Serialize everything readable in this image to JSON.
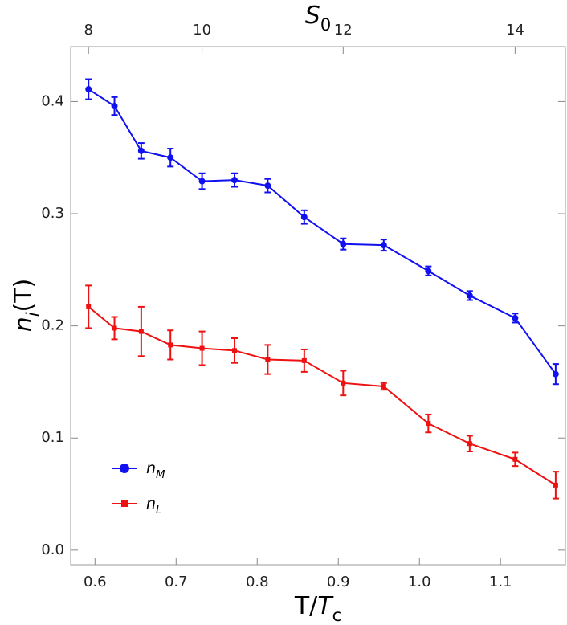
{
  "chart_data": {
    "type": "line",
    "x_label": "T/Tc",
    "x2_label": "S0",
    "y_label": "ni(T)",
    "x": [
      0.592,
      0.624,
      0.657,
      0.693,
      0.732,
      0.772,
      0.813,
      0.858,
      0.906,
      0.956,
      1.011,
      1.062,
      1.118,
      1.168
    ],
    "x2": [
      8,
      8.5,
      9,
      9.5,
      10,
      10.5,
      11,
      11.5,
      12,
      12.5,
      13,
      13.5,
      14,
      14.5
    ],
    "series": [
      {
        "name": "nM",
        "color": "#1010f0",
        "marker": "circle",
        "values": [
          0.411,
          0.396,
          0.356,
          0.35,
          0.329,
          0.33,
          0.325,
          0.297,
          0.273,
          0.272,
          0.249,
          0.227,
          0.207,
          0.157
        ],
        "errors": [
          0.009,
          0.008,
          0.007,
          0.008,
          0.007,
          0.006,
          0.006,
          0.006,
          0.005,
          0.005,
          0.004,
          0.004,
          0.004,
          0.009
        ]
      },
      {
        "name": "nL",
        "color": "#ee1111",
        "marker": "square",
        "values": [
          0.217,
          0.198,
          0.195,
          0.183,
          0.18,
          0.178,
          0.17,
          0.169,
          0.149,
          0.146,
          0.113,
          0.095,
          0.081,
          0.058
        ],
        "errors": [
          0.019,
          0.01,
          0.022,
          0.013,
          0.015,
          0.011,
          0.013,
          0.01,
          0.011,
          0.003,
          0.008,
          0.007,
          0.006,
          0.012
        ]
      }
    ],
    "xlim": [
      0.57,
      1.18
    ],
    "ylim": [
      -0.013,
      0.449
    ],
    "xticks": [
      0.6,
      0.7,
      0.8,
      0.9,
      {
        "value": 1.0,
        "label": "1.0"
      },
      1.1
    ],
    "yticks": [
      {
        "value": 0,
        "label": "0.0"
      },
      0.1,
      0.2,
      0.3,
      0.4
    ],
    "x2ticks": [
      8,
      10,
      12,
      14
    ],
    "legend": "lower-left"
  }
}
